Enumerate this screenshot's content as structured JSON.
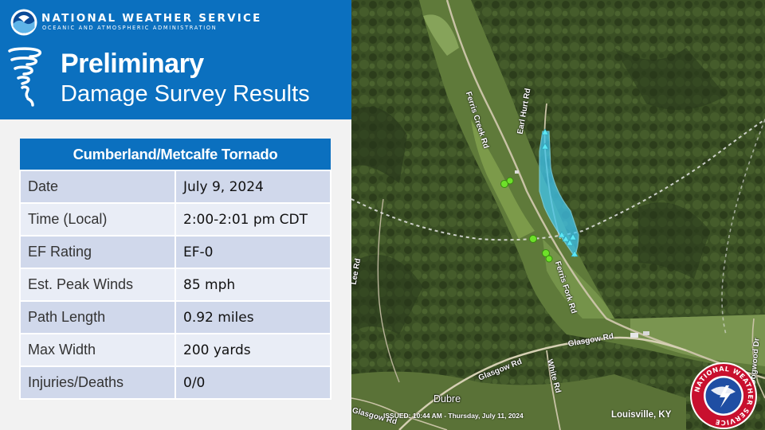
{
  "agency": {
    "name": "NATIONAL WEATHER SERVICE",
    "subtitle": "OCEANIC AND ATMOSPHERIC ADMINISTRATION"
  },
  "title": {
    "line1": "Preliminary",
    "line2": "Damage Survey Results"
  },
  "survey": {
    "heading": "Cumberland/Metcalfe Tornado",
    "rows": [
      {
        "label": "Date",
        "value": "July 9, 2024"
      },
      {
        "label": "Time (Local)",
        "value": "2:00-2:01 pm CDT"
      },
      {
        "label": "EF Rating",
        "value": "EF-0"
      },
      {
        "label": "Est. Peak Winds",
        "value": "85 mph"
      },
      {
        "label": "Path Length",
        "value": "0.92 miles"
      },
      {
        "label": "Max Width",
        "value": "200 yards"
      },
      {
        "label": "Injuries/Deaths",
        "value": "0/0"
      }
    ]
  },
  "map": {
    "roads": {
      "ferris_creek": "Ferris Creek Rd",
      "earl_hurt": "Earl Hurt Rd",
      "ferris_fork": "Ferris Fork Rd",
      "lee": "Lee Rd",
      "glasgow_1": "Glasgow Rd",
      "glasgow_2": "Glasgow Rd",
      "glasgow_3": "Glasgow Rd",
      "white": "White Rd",
      "edge_right": "Dogwood Dr"
    },
    "place": "Dubre",
    "issued": "ISSUED: 10:44 AM - Thursday, July 11, 2024",
    "office": "Louisville, KY"
  },
  "logos": {
    "nws_ring_text": "NATIONAL WEATHER SERVICE"
  },
  "colors": {
    "brand_blue": "#0b70bf",
    "row_dark": "#d0d8eb",
    "row_light": "#e9edf6",
    "tornado_path": "#3fc6f0",
    "damage_point": "#6ee02a"
  }
}
